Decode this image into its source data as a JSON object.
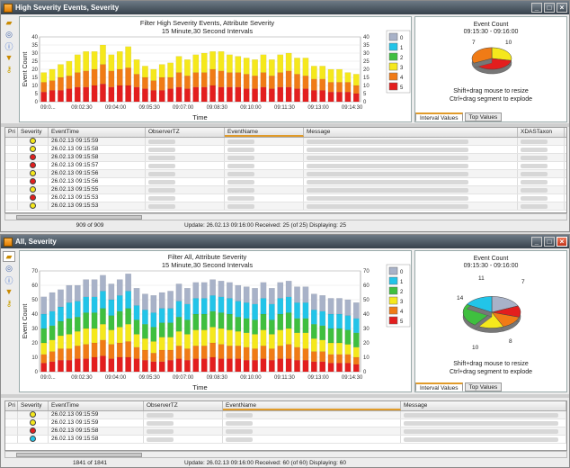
{
  "window1": {
    "title": "High Severity Events, Severity",
    "chart_data": {
      "type": "bar",
      "title": "Filter High Severity Events, Attribute Severity",
      "subtitle": "15 Minute,30 Second Intervals",
      "xlabel": "Time",
      "ylabel": "Event Count",
      "ylim": [
        0,
        40
      ],
      "ticks": [
        "09:0...",
        "09:02:30",
        "09:04:00",
        "09:05:30",
        "09:07:00",
        "09:08:30",
        "09:10:00",
        "09:11:30",
        "09:13:00",
        "09:14:30"
      ],
      "yticks": [
        "0",
        "5",
        "10",
        "15",
        "20",
        "25",
        "30",
        "35",
        "40"
      ],
      "series": [
        {
          "name": "5",
          "color": "#e31e1e",
          "values": [
            6,
            7,
            7,
            8,
            9,
            9,
            10,
            11,
            9,
            10,
            10,
            9,
            8,
            7,
            7,
            8,
            9,
            8,
            9,
            9,
            10,
            9,
            9,
            9,
            8,
            8,
            9,
            8,
            9,
            9,
            8,
            8,
            7,
            7,
            6,
            6,
            6,
            5
          ]
        },
        {
          "name": "4",
          "color": "#f07b16",
          "values": [
            6,
            6,
            8,
            8,
            9,
            10,
            10,
            12,
            10,
            10,
            11,
            8,
            7,
            6,
            8,
            7,
            9,
            8,
            9,
            9,
            10,
            10,
            9,
            9,
            9,
            8,
            9,
            8,
            9,
            10,
            9,
            8,
            7,
            7,
            6,
            6,
            6,
            5
          ]
        },
        {
          "name": "3",
          "color": "#f5e81c",
          "values": [
            6,
            7,
            8,
            9,
            11,
            12,
            11,
            12,
            10,
            11,
            13,
            9,
            7,
            7,
            8,
            9,
            10,
            10,
            11,
            12,
            11,
            12,
            11,
            10,
            10,
            10,
            11,
            10,
            11,
            11,
            10,
            11,
            8,
            8,
            8,
            8,
            6,
            7
          ]
        },
        {
          "name": "2",
          "color": "#3fbf3f",
          "values": [
            0,
            0,
            0,
            0,
            0,
            0,
            0,
            0,
            0,
            0,
            0,
            0,
            0,
            0,
            0,
            0,
            0,
            0,
            0,
            0,
            0,
            0,
            0,
            0,
            0,
            0,
            0,
            0,
            0,
            0,
            0,
            0,
            0,
            0,
            0,
            0,
            0,
            0
          ]
        },
        {
          "name": "1",
          "color": "#22c4e8",
          "values": [
            0,
            0,
            0,
            0,
            0,
            0,
            0,
            0,
            0,
            0,
            0,
            0,
            0,
            0,
            0,
            0,
            0,
            0,
            0,
            0,
            0,
            0,
            0,
            0,
            0,
            0,
            0,
            0,
            0,
            0,
            0,
            0,
            0,
            0,
            0,
            0,
            0,
            0
          ]
        },
        {
          "name": "0",
          "color": "#a8b2c8",
          "values": [
            0,
            0,
            0,
            0,
            0,
            0,
            0,
            0,
            0,
            0,
            0,
            0,
            0,
            0,
            0,
            0,
            0,
            0,
            0,
            0,
            0,
            0,
            0,
            0,
            0,
            0,
            0,
            0,
            0,
            0,
            0,
            0,
            0,
            0,
            0,
            0,
            0,
            0
          ]
        }
      ],
      "legend": [
        "0",
        "1",
        "2",
        "3",
        "4",
        "5"
      ]
    },
    "pie": {
      "title": "Event Count",
      "range": "09:15:30 - 09:16:00",
      "labels": [
        "7",
        "10"
      ],
      "slices": [
        {
          "value": 7,
          "color": "#f5e81c"
        },
        {
          "value": 10,
          "color": "#e31e1e"
        },
        {
          "value": 8,
          "color": "#f07b16"
        }
      ],
      "hint1": "Shift+drag mouse to resize",
      "hint2": "Ctrl+drag segment to explode",
      "tabs": [
        "Interval Values",
        "Top Values"
      ]
    },
    "grid": {
      "columns": [
        "Pri",
        "Severity",
        "EventTime",
        "ObserverTZ",
        "EventName",
        "Message",
        "XDASTaxon"
      ],
      "rows": [
        {
          "sev": "#f5e81c",
          "time": "26.02.13 09:15:59"
        },
        {
          "sev": "#f5e81c",
          "time": "26.02.13 09:15:58"
        },
        {
          "sev": "#e31e1e",
          "time": "26.02.13 09:15:58"
        },
        {
          "sev": "#e31e1e",
          "time": "26.02.13 09:15:57"
        },
        {
          "sev": "#f5e81c",
          "time": "26.02.13 09:15:56"
        },
        {
          "sev": "#e31e1e",
          "time": "26.02.13 09:15:56"
        },
        {
          "sev": "#f5e81c",
          "time": "26.02.13 09:15:55"
        },
        {
          "sev": "#e31e1e",
          "time": "26.02.13 09:15:53"
        },
        {
          "sev": "#f5e81c",
          "time": "26.02.13 09:15:53"
        }
      ],
      "count": "909 of 909",
      "update": "Update: 26.02.13 09:16:00   Received: 25 (of 25)   Displaying: 25"
    }
  },
  "window2": {
    "title": "All, Severity",
    "chart_data": {
      "type": "bar",
      "title": "Filter All, Attribute Severity",
      "subtitle": "15 Minute,30 Second Intervals",
      "xlabel": "Time",
      "ylabel": "Event Count",
      "ylim": [
        0,
        70
      ],
      "ticks": [
        "09:0...",
        "09:02:30",
        "09:04:00",
        "09:05:30",
        "09:07:00",
        "09:08:30",
        "09:10:00",
        "09:11:30",
        "09:13:00",
        "09:14:30"
      ],
      "yticks": [
        "0",
        "10",
        "20",
        "30",
        "40",
        "50",
        "60",
        "70"
      ],
      "series": [
        {
          "name": "5",
          "color": "#e31e1e",
          "values": [
            6,
            7,
            8,
            8,
            9,
            9,
            10,
            11,
            9,
            10,
            10,
            9,
            8,
            7,
            7,
            8,
            9,
            8,
            9,
            9,
            10,
            9,
            9,
            9,
            8,
            8,
            9,
            8,
            9,
            9,
            8,
            8,
            7,
            7,
            6,
            6,
            6,
            5
          ]
        },
        {
          "name": "4",
          "color": "#f07b16",
          "values": [
            6,
            7,
            8,
            8,
            9,
            10,
            10,
            11,
            10,
            10,
            11,
            8,
            7,
            6,
            8,
            7,
            9,
            8,
            9,
            9,
            10,
            10,
            9,
            9,
            9,
            8,
            9,
            8,
            9,
            10,
            9,
            8,
            7,
            7,
            6,
            6,
            6,
            5
          ]
        },
        {
          "name": "3",
          "color": "#f5e81c",
          "values": [
            8,
            8,
            9,
            10,
            10,
            11,
            10,
            11,
            10,
            11,
            12,
            9,
            8,
            8,
            9,
            9,
            10,
            10,
            11,
            11,
            11,
            11,
            11,
            10,
            10,
            10,
            11,
            10,
            11,
            11,
            10,
            11,
            9,
            8,
            8,
            8,
            7,
            7
          ]
        },
        {
          "name": "2",
          "color": "#3fbf3f",
          "values": [
            10,
            10,
            10,
            11,
            10,
            11,
            11,
            11,
            10,
            11,
            11,
            10,
            10,
            10,
            10,
            10,
            10,
            10,
            11,
            11,
            11,
            11,
            11,
            10,
            10,
            10,
            11,
            10,
            11,
            11,
            10,
            10,
            10,
            10,
            10,
            10,
            10,
            10
          ]
        },
        {
          "name": "1",
          "color": "#22c4e8",
          "values": [
            10,
            10,
            10,
            11,
            11,
            11,
            11,
            12,
            11,
            11,
            12,
            10,
            10,
            10,
            10,
            10,
            11,
            11,
            11,
            11,
            11,
            11,
            11,
            11,
            11,
            11,
            11,
            11,
            11,
            11,
            11,
            11,
            10,
            10,
            10,
            10,
            10,
            10
          ]
        },
        {
          "name": "0",
          "color": "#a8b2c8",
          "values": [
            12,
            13,
            12,
            12,
            11,
            12,
            12,
            11,
            11,
            11,
            12,
            12,
            11,
            12,
            11,
            12,
            12,
            11,
            11,
            11,
            11,
            11,
            11,
            11,
            11,
            11,
            11,
            11,
            11,
            11,
            11,
            11,
            11,
            11,
            11,
            11,
            11,
            11
          ]
        }
      ],
      "legend": [
        "0",
        "1",
        "2",
        "3",
        "4",
        "5"
      ]
    },
    "pie": {
      "title": "Event Count",
      "range": "09:15:30 - 09:16:00",
      "labels": [
        "11",
        "7",
        "14",
        "10",
        "8"
      ],
      "slices": [
        {
          "value": 11,
          "color": "#a8b2c8"
        },
        {
          "value": 7,
          "color": "#e31e1e"
        },
        {
          "value": 8,
          "color": "#f07b16"
        },
        {
          "value": 10,
          "color": "#f5e81c"
        },
        {
          "value": 14,
          "color": "#3fbf3f"
        },
        {
          "value": 10,
          "color": "#22c4e8"
        }
      ],
      "hint1": "Shift+drag mouse to resize",
      "hint2": "Ctrl+drag segment to explode",
      "tabs": [
        "Interval Values",
        "Top Values"
      ]
    },
    "grid": {
      "columns": [
        "Pri",
        "Severity",
        "EventTime",
        "ObserverTZ",
        "EventName",
        "Message"
      ],
      "rows": [
        {
          "sev": "#f5e81c",
          "time": "26.02.13 09:15:59"
        },
        {
          "sev": "#f5e81c",
          "time": "26.02.13 09:15:59"
        },
        {
          "sev": "#e31e1e",
          "time": "26.02.13 09:15:58"
        },
        {
          "sev": "#22c4e8",
          "time": "26.02.13 09:15:58"
        }
      ],
      "count": "1841 of 1841",
      "update": "Update: 26.02.13 09:16:00   Received: 60 (of 60)   Displaying: 60"
    }
  },
  "toolbar": {
    "icons": [
      "folder-open-icon",
      "database-icon",
      "info-icon",
      "filter-icon",
      "key-icon"
    ]
  }
}
